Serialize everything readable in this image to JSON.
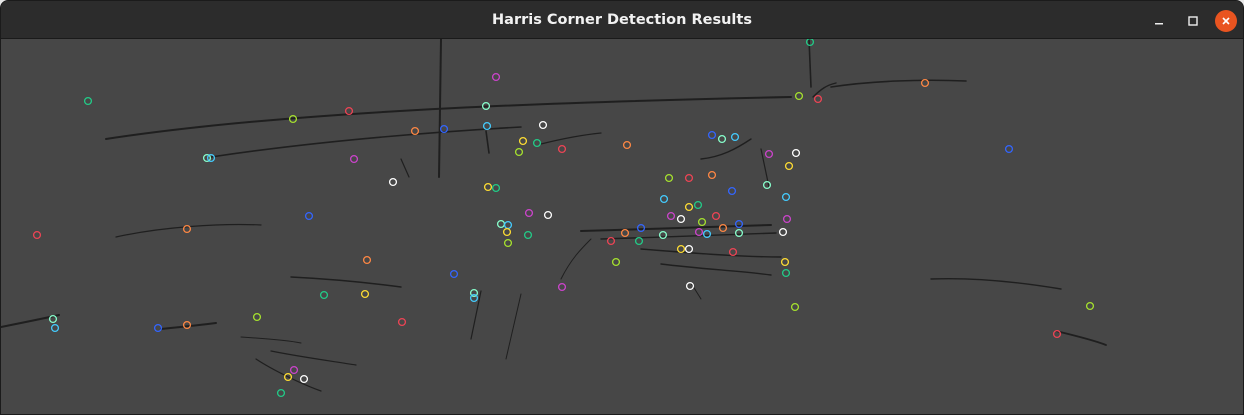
{
  "window": {
    "title": "Harris Corner Detection Results",
    "controls": {
      "minimize_icon": "minimize-icon",
      "maximize_icon": "maximize-icon",
      "close_icon": "close-icon"
    },
    "colors": {
      "titlebar": "#2c2c2c",
      "canvas_background": "#474747",
      "close_button": "#e95420"
    }
  },
  "image": {
    "content": "harris-corner-detection-result",
    "marker_shape": "circle",
    "marker_colors": [
      "#a6e22e",
      "#3366ff",
      "#cc44cc",
      "#22cc88",
      "#ff8844",
      "#44ccff",
      "#ffdd33",
      "#ee4455",
      "#88ffcc",
      "#ffffff"
    ]
  }
}
